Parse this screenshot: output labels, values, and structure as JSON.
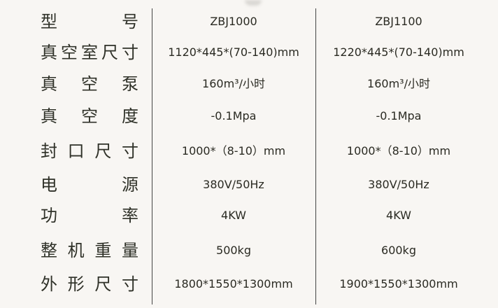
{
  "columns": [
    "ZBJ1000",
    "ZBJ1100"
  ],
  "rows": [
    {
      "label": "型　　号",
      "values": [
        "ZBJ1000",
        "ZBJ1100"
      ]
    },
    {
      "label": "真空室尺寸",
      "values": [
        "1120*445*(70-140)mm",
        "1220*445*(70-140)mm"
      ]
    },
    {
      "label": "真 空 泵",
      "values": [
        "160m³/小时",
        "160m³/小时"
      ]
    },
    {
      "label": "真 空 度",
      "values": [
        "-0.1Mpa",
        "-0.1Mpa"
      ]
    },
    {
      "label": "封口尺寸",
      "values": [
        "1000*（8-10）mm",
        "1000*（8-10）mm"
      ]
    },
    {
      "label": "电　　源",
      "values": [
        "380V/50Hz",
        "380V/50Hz"
      ]
    },
    {
      "label": "功　　率",
      "values": [
        "4KW",
        "4KW"
      ]
    },
    {
      "label": "整机重量",
      "values": [
        "500kg",
        "600kg"
      ]
    },
    {
      "label": "外形尺寸",
      "values": [
        "1800*1550*1300mm",
        "1900*1550*1300mm"
      ]
    }
  ]
}
